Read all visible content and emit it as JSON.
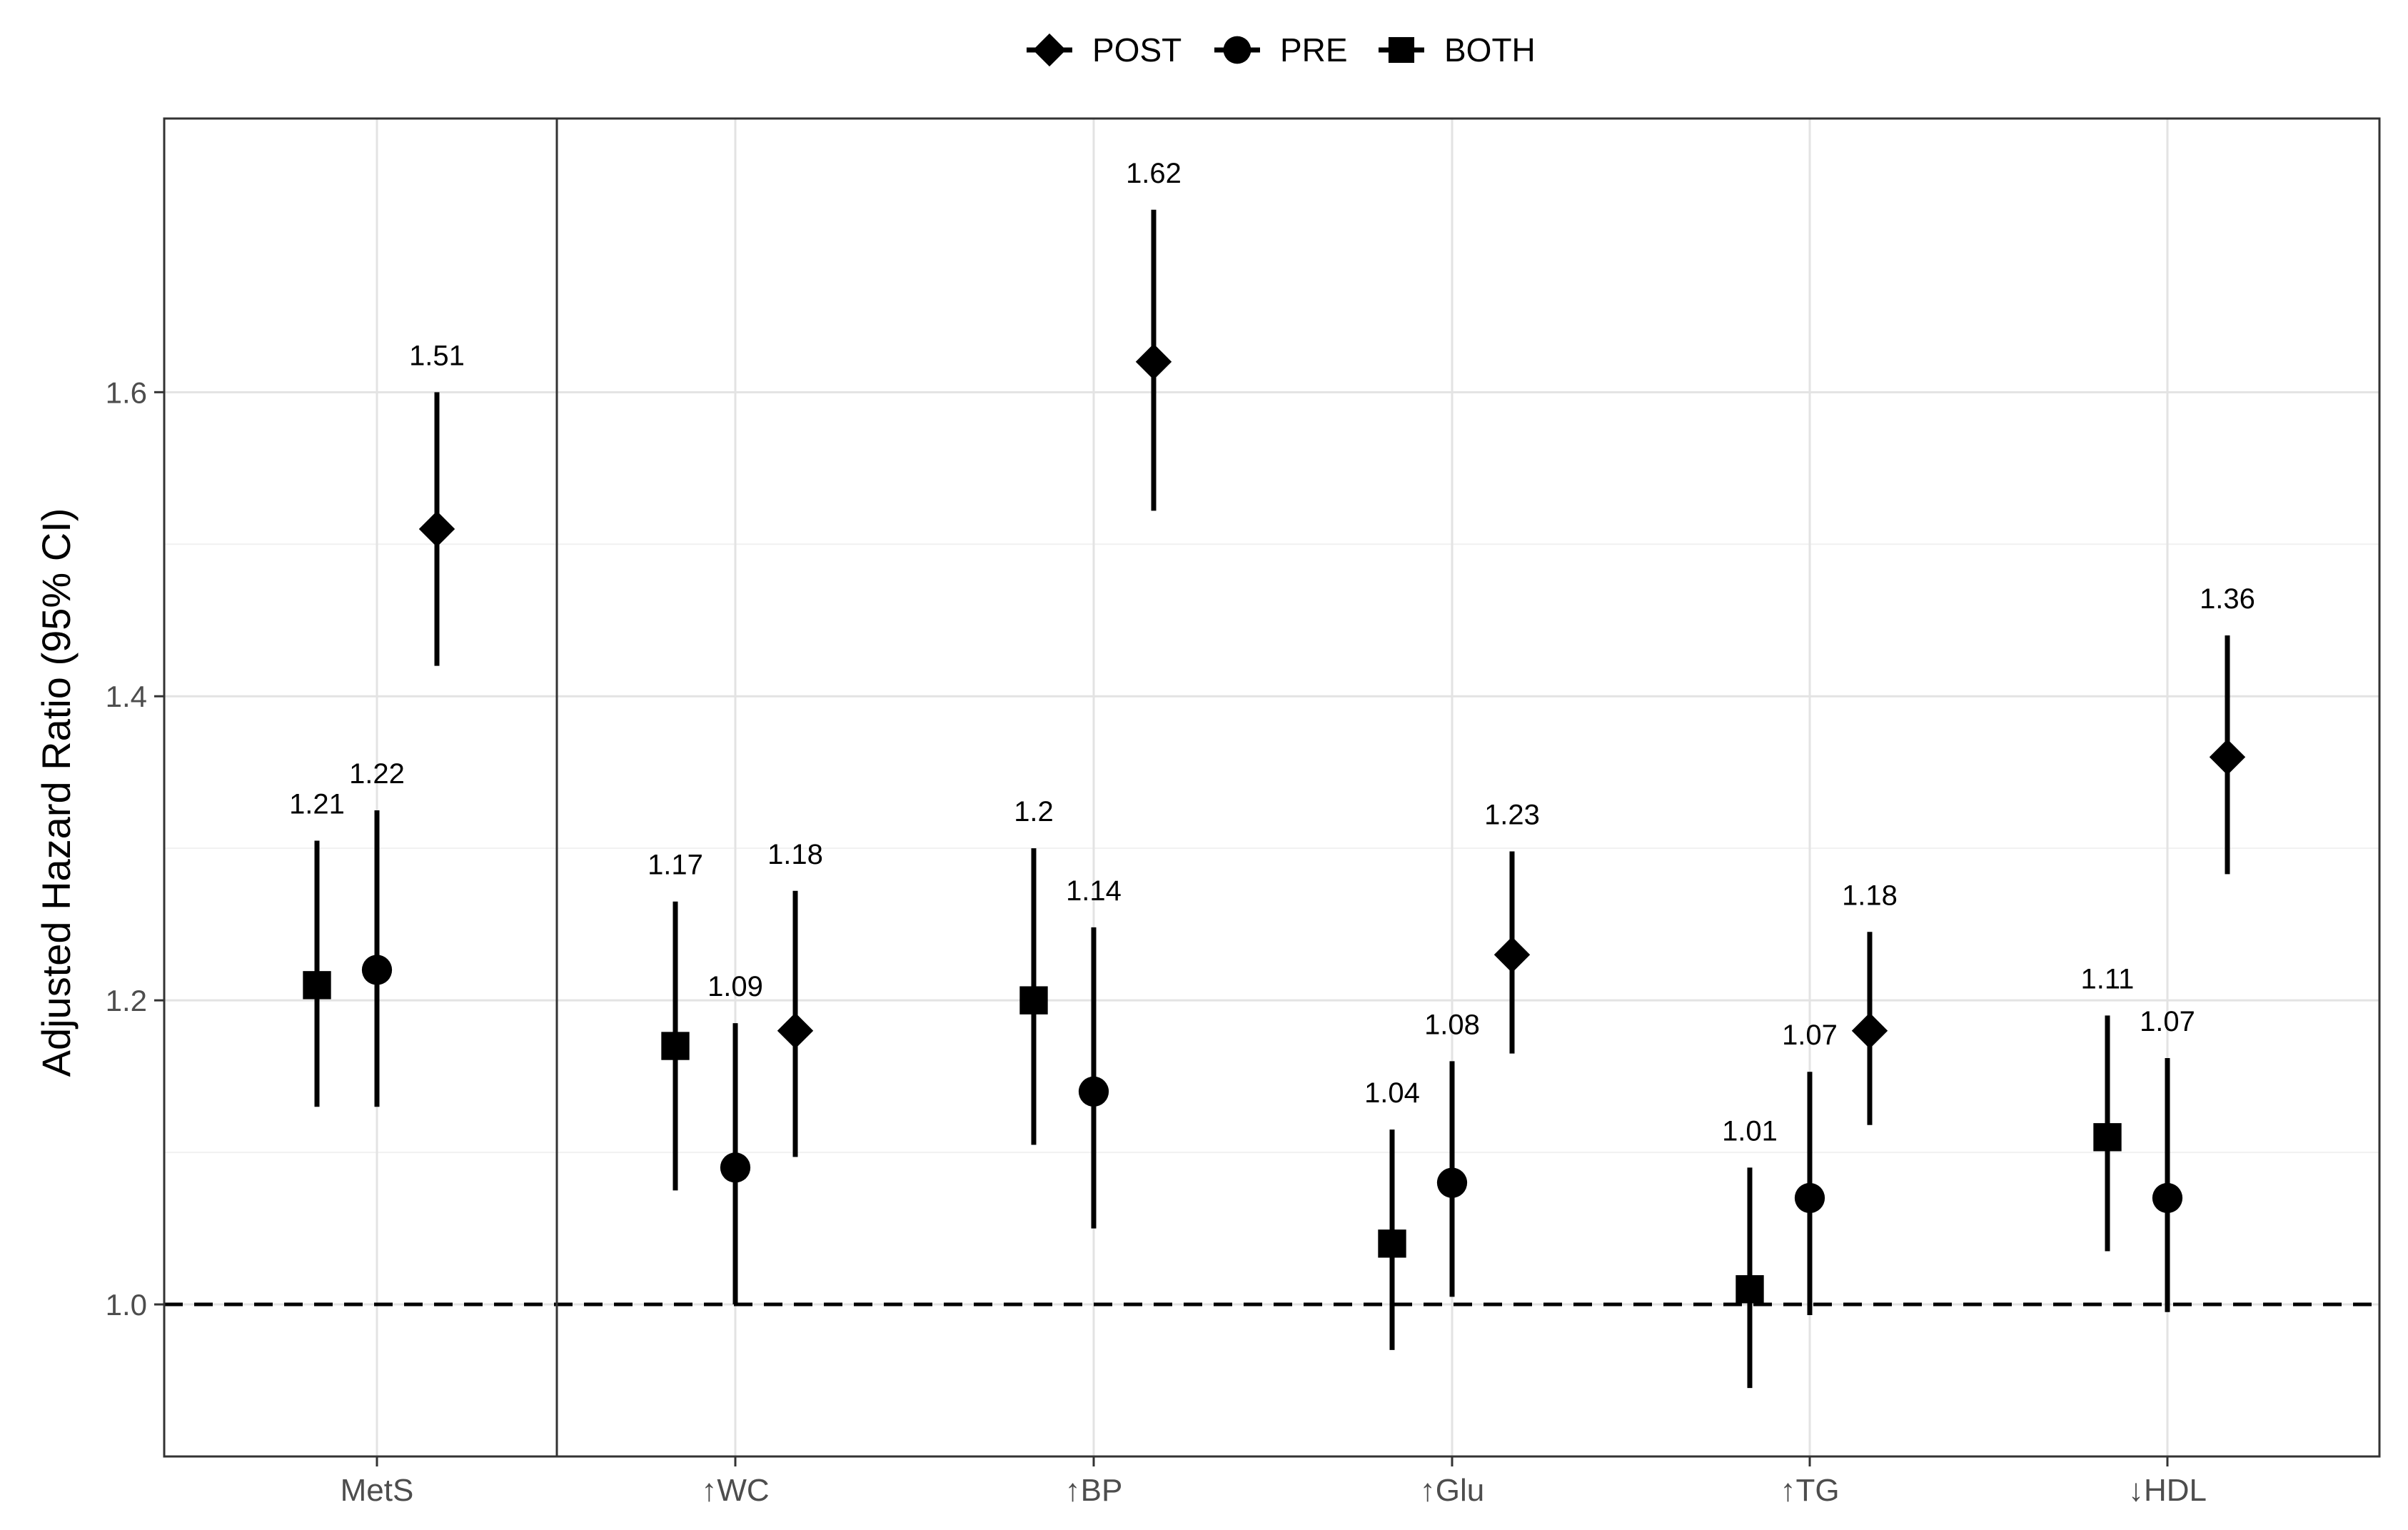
{
  "chart_data": {
    "type": "scatter",
    "subtype": "point-range forest plot",
    "title": "",
    "xlabel": "",
    "ylabel": "Adjusted Hazard Ratio (95% CI)",
    "categories": [
      "MetS",
      "↑WC",
      "↑BP",
      "↑Glu",
      "↑TG",
      "↓HDL"
    ],
    "ylim": [
      0.9,
      1.78
    ],
    "yticks": [
      1.0,
      1.2,
      1.4,
      1.6
    ],
    "ytick_labels": [
      "1.0",
      "1.2",
      "1.4",
      "1.6"
    ],
    "reference_line": 1.0,
    "grid": true,
    "legend_position": "top",
    "legend": [
      {
        "name": "POST",
        "shape": "diamond"
      },
      {
        "name": "PRE",
        "shape": "circle"
      },
      {
        "name": "BOTH",
        "shape": "square"
      }
    ],
    "series": [
      {
        "name": "BOTH",
        "shape": "square",
        "values": [
          1.21,
          1.17,
          1.2,
          1.04,
          1.01,
          1.11
        ],
        "lower": [
          1.13,
          1.075,
          1.105,
          0.97,
          0.945,
          1.035
        ],
        "upper": [
          1.305,
          1.265,
          1.3,
          1.115,
          1.09,
          1.19
        ],
        "labels": [
          "1.21",
          "1.17",
          "1.2",
          "1.04",
          "1.01",
          "1.11"
        ]
      },
      {
        "name": "PRE",
        "shape": "circle",
        "values": [
          1.22,
          1.09,
          1.14,
          1.08,
          1.07,
          1.07
        ],
        "lower": [
          1.13,
          1.0,
          1.05,
          1.005,
          0.993,
          0.995
        ],
        "upper": [
          1.325,
          1.185,
          1.248,
          1.16,
          1.153,
          1.162
        ],
        "labels": [
          "1.22",
          "1.09",
          "1.14",
          "1.08",
          "1.07",
          "1.07"
        ]
      },
      {
        "name": "POST",
        "shape": "diamond",
        "values": [
          1.51,
          1.18,
          1.62,
          1.23,
          1.18,
          1.36
        ],
        "lower": [
          1.42,
          1.097,
          1.522,
          1.165,
          1.118,
          1.283
        ],
        "upper": [
          1.6,
          1.272,
          1.72,
          1.298,
          1.245,
          1.44
        ],
        "labels": [
          "1.51",
          "1.18",
          "1.62",
          "1.23",
          "1.18",
          "1.36"
        ]
      }
    ]
  }
}
